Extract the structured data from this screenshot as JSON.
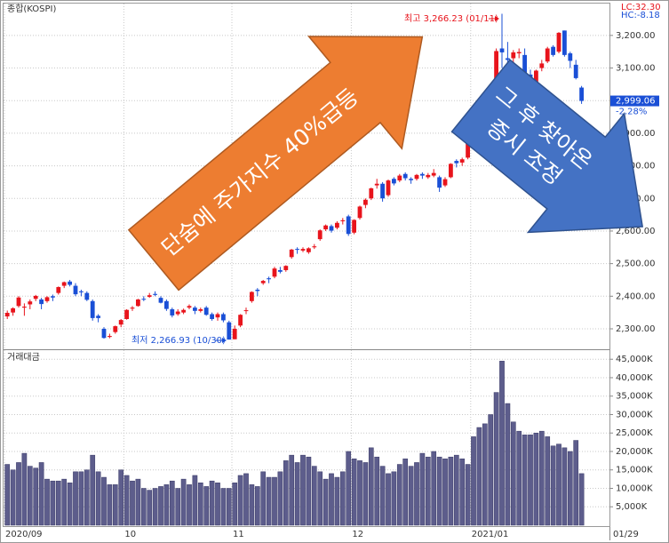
{
  "chart_data": [
    {
      "type": "candlestick",
      "title": "종합(KOSPI)",
      "categories": [
        "2020/09",
        null,
        null,
        null,
        null,
        null,
        null,
        null,
        null,
        null,
        null,
        null,
        null,
        null,
        null,
        null,
        null,
        null,
        null,
        null,
        null,
        "10",
        null,
        null,
        null,
        null,
        null,
        null,
        null,
        null,
        null,
        null,
        null,
        null,
        null,
        null,
        null,
        null,
        null,
        null,
        "11",
        null,
        null,
        null,
        null,
        null,
        null,
        null,
        null,
        null,
        null,
        null,
        null,
        null,
        null,
        null,
        null,
        null,
        null,
        null,
        null,
        "12",
        null,
        null,
        null,
        null,
        null,
        null,
        null,
        null,
        null,
        null,
        null,
        null,
        null,
        null,
        null,
        null,
        null,
        null,
        null,
        null,
        "2021/01",
        null,
        null,
        null,
        null,
        null,
        null,
        null,
        null,
        null,
        null,
        null,
        null,
        null,
        null,
        null,
        null,
        null,
        null,
        "01/29"
      ],
      "open": [
        2338,
        2350,
        2370,
        2365,
        2375,
        2392,
        2390,
        2385,
        2400,
        2410,
        2432,
        2445,
        2432,
        2415,
        2410,
        2385,
        2340,
        2300,
        2275,
        2290,
        2313,
        2330,
        2362,
        2370,
        2392,
        2398,
        2407,
        2395,
        2385,
        2360,
        2345,
        2350,
        2365,
        2365,
        2355,
        2365,
        2345,
        2335,
        2345,
        2320,
        2268,
        2310,
        2355,
        2385,
        2420,
        2440,
        2455,
        2460,
        2480,
        2480,
        2520,
        2545,
        2540,
        2535,
        2550,
        2575,
        2605,
        2615,
        2610,
        2630,
        2645,
        2595,
        2640,
        2680,
        2700,
        2740,
        2745,
        2710,
        2760,
        2755,
        2775,
        2760,
        2760,
        2775,
        2765,
        2770,
        2765,
        2740,
        2765,
        2815,
        2810,
        2825,
        2875,
        2945,
        2990,
        2975,
        3040,
        3160,
        3130,
        3130,
        3145,
        3140,
        3080,
        3025,
        3100,
        3120,
        3165,
        3150,
        3215,
        3145,
        3110,
        3040
      ],
      "high": [
        2356,
        2366,
        2400,
        2378,
        2390,
        2404,
        2395,
        2400,
        2405,
        2430,
        2445,
        2450,
        2440,
        2420,
        2415,
        2390,
        2345,
        2305,
        2285,
        2310,
        2330,
        2360,
        2370,
        2392,
        2400,
        2410,
        2415,
        2400,
        2390,
        2365,
        2360,
        2362,
        2375,
        2370,
        2365,
        2370,
        2350,
        2350,
        2350,
        2325,
        2310,
        2345,
        2365,
        2415,
        2425,
        2450,
        2460,
        2490,
        2490,
        2495,
        2545,
        2550,
        2550,
        2550,
        2560,
        2605,
        2620,
        2620,
        2630,
        2640,
        2650,
        2636,
        2678,
        2700,
        2733,
        2760,
        2750,
        2758,
        2765,
        2775,
        2780,
        2765,
        2775,
        2780,
        2778,
        2790,
        2770,
        2765,
        2808,
        2820,
        2825,
        2878,
        2946,
        2992,
        3000,
        3035,
        3160,
        3266.23,
        3180,
        3155,
        3160,
        3160,
        3095,
        3095,
        3125,
        3165,
        3170,
        3210,
        3215,
        3150,
        3125,
        3045
      ],
      "low": [
        2330,
        2340,
        2365,
        2340,
        2360,
        2385,
        2360,
        2380,
        2385,
        2405,
        2425,
        2430,
        2400,
        2400,
        2385,
        2325,
        2320,
        2270,
        2271,
        2285,
        2305,
        2328,
        2355,
        2368,
        2385,
        2395,
        2400,
        2378,
        2355,
        2335,
        2340,
        2345,
        2360,
        2345,
        2350,
        2340,
        2325,
        2325,
        2320,
        2266.93,
        2268,
        2305,
        2345,
        2380,
        2400,
        2435,
        2440,
        2455,
        2470,
        2475,
        2515,
        2530,
        2535,
        2530,
        2545,
        2570,
        2600,
        2595,
        2605,
        2620,
        2585,
        2590,
        2635,
        2670,
        2695,
        2730,
        2690,
        2705,
        2740,
        2750,
        2755,
        2745,
        2755,
        2760,
        2760,
        2765,
        2720,
        2735,
        2762,
        2795,
        2800,
        2820,
        2870,
        2930,
        2950,
        2970,
        3035,
        3100,
        3070,
        3110,
        3130,
        3080,
        3010,
        3020,
        3090,
        3115,
        3135,
        3145,
        3135,
        3100,
        3065,
        2990
      ],
      "close": [
        2349,
        2363,
        2396,
        2368,
        2384,
        2401,
        2376,
        2397,
        2396,
        2428,
        2443,
        2435,
        2406,
        2412,
        2389,
        2333,
        2333,
        2272,
        2278,
        2308,
        2327,
        2358,
        2365,
        2390,
        2391,
        2403,
        2404,
        2380,
        2361,
        2341,
        2353,
        2358,
        2370,
        2355,
        2360,
        2343,
        2330,
        2345,
        2326,
        2267,
        2300,
        2343,
        2357,
        2413,
        2416,
        2447,
        2452,
        2485,
        2475,
        2493,
        2543,
        2543,
        2545,
        2547,
        2553,
        2602,
        2617,
        2601,
        2625,
        2633,
        2591,
        2634,
        2675,
        2696,
        2731,
        2745,
        2700,
        2755,
        2746,
        2770,
        2762,
        2756,
        2772,
        2770,
        2772,
        2778,
        2733,
        2759,
        2806,
        2808,
        2820,
        2873,
        2944,
        2990,
        2968,
        3031,
        3152,
        3148,
        3125,
        3148,
        3149,
        3085,
        3013,
        3092,
        3114,
        3160,
        3140,
        3208,
        3140,
        3122,
        3069,
        2999.06
      ],
      "up_color": "#e8141c",
      "down_color": "#1a4fd6",
      "ylim": [
        2240,
        3295
      ],
      "yticks": [
        {
          "value": 2300,
          "label": "2,300.00"
        },
        {
          "value": 2400,
          "label": "2,400.00"
        },
        {
          "value": 2500,
          "label": "2,500.00"
        },
        {
          "value": 2600,
          "label": "2,600.00"
        },
        {
          "value": 2700,
          "label": "2,700.00"
        },
        {
          "value": 2800,
          "label": "2,800.00"
        },
        {
          "value": 2900,
          "label": "2,900.00"
        },
        {
          "value": 3000,
          "label": "3,000.00"
        },
        {
          "value": 3100,
          "label": "3,100.00"
        },
        {
          "value": 3200,
          "label": "3,200.00"
        }
      ],
      "grid": true,
      "high_label": "최고 3,266.23 (01/11)",
      "low_label": "최저 2,266.93 (10/30)",
      "lc_label": "LC:32.30",
      "hc_label": "HC:-8.18",
      "last_label": "2,999.06",
      "change_label": "-2.28%",
      "annotations": [
        "단숨에 주가지수 40%급등",
        "그 후 찾아온",
        "증시 조정"
      ]
    },
    {
      "type": "bar",
      "title": "거래대금",
      "color": "#5d5d8c",
      "values": [
        16500,
        15000,
        17000,
        19500,
        16000,
        15500,
        17000,
        12500,
        12000,
        12000,
        12500,
        11500,
        14500,
        14500,
        15000,
        19000,
        14500,
        13000,
        11000,
        11000,
        15000,
        13500,
        12000,
        12500,
        10000,
        9500,
        10000,
        10500,
        11000,
        12000,
        10000,
        12500,
        11000,
        13500,
        11500,
        10500,
        12000,
        11500,
        10000,
        10000,
        11500,
        13500,
        14000,
        11000,
        10500,
        14500,
        13000,
        13000,
        14500,
        17500,
        19000,
        17000,
        19000,
        18500,
        16000,
        14500,
        12500,
        14000,
        13000,
        14500,
        20000,
        18000,
        17500,
        17000,
        21000,
        18500,
        16000,
        14000,
        14500,
        16500,
        18000,
        16000,
        17000,
        19500,
        18500,
        20000,
        18500,
        18000,
        18500,
        19000,
        18000,
        16500,
        24000,
        26500,
        27500,
        30000,
        36000,
        44500,
        33000,
        28000,
        25500,
        24500,
        24500,
        25000,
        25500,
        24000,
        21500,
        22000,
        21000,
        20000,
        23000,
        14000
      ],
      "ylim": [
        0,
        46500
      ],
      "yticks": [
        {
          "value": 5000,
          "label": "5,000K"
        },
        {
          "value": 10000,
          "label": "10,000K"
        },
        {
          "value": 15000,
          "label": "15,000K"
        },
        {
          "value": 20000,
          "label": "20,000K"
        },
        {
          "value": 25000,
          "label": "25,000K"
        },
        {
          "value": 30000,
          "label": "30,000K"
        },
        {
          "value": 35000,
          "label": "35,000K"
        },
        {
          "value": 40000,
          "label": "40,000K"
        },
        {
          "value": 45000,
          "label": "45,000K"
        }
      ],
      "grid": true
    }
  ]
}
